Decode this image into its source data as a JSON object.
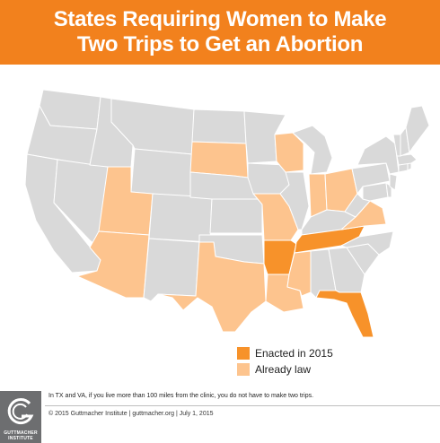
{
  "title_line1": "States Requiring Women to Make",
  "title_line2": "Two Trips to Get an Abortion",
  "colors": {
    "header": "#f2811d",
    "enacted_2015": "#f7922a",
    "already_law": "#fdc48e",
    "no_requirement": "#d9d9d9"
  },
  "states": {
    "enacted_2015": [
      "Arkansas",
      "Tennessee",
      "Florida"
    ],
    "already_law": [
      "Utah",
      "Arizona",
      "Texas",
      "South Dakota",
      "Missouri",
      "Louisiana",
      "Mississippi",
      "Wisconsin",
      "Indiana",
      "Ohio",
      "Virginia"
    ]
  },
  "legend": [
    {
      "label": "Enacted in 2015",
      "color": "#f7922a"
    },
    {
      "label": "Already law",
      "color": "#fdc48e"
    }
  ],
  "footnote": "In TX and VA, if you live more than 100 miles from the clinic, you do not have to make two trips.",
  "footer": "© 2015 Guttmacher Institute  |  guttmacher.org  |  July 1, 2015",
  "logo": {
    "line1": "GUTTMACHER",
    "line2": "INSTITUTE",
    "icon": "guttmacher-g-icon"
  }
}
